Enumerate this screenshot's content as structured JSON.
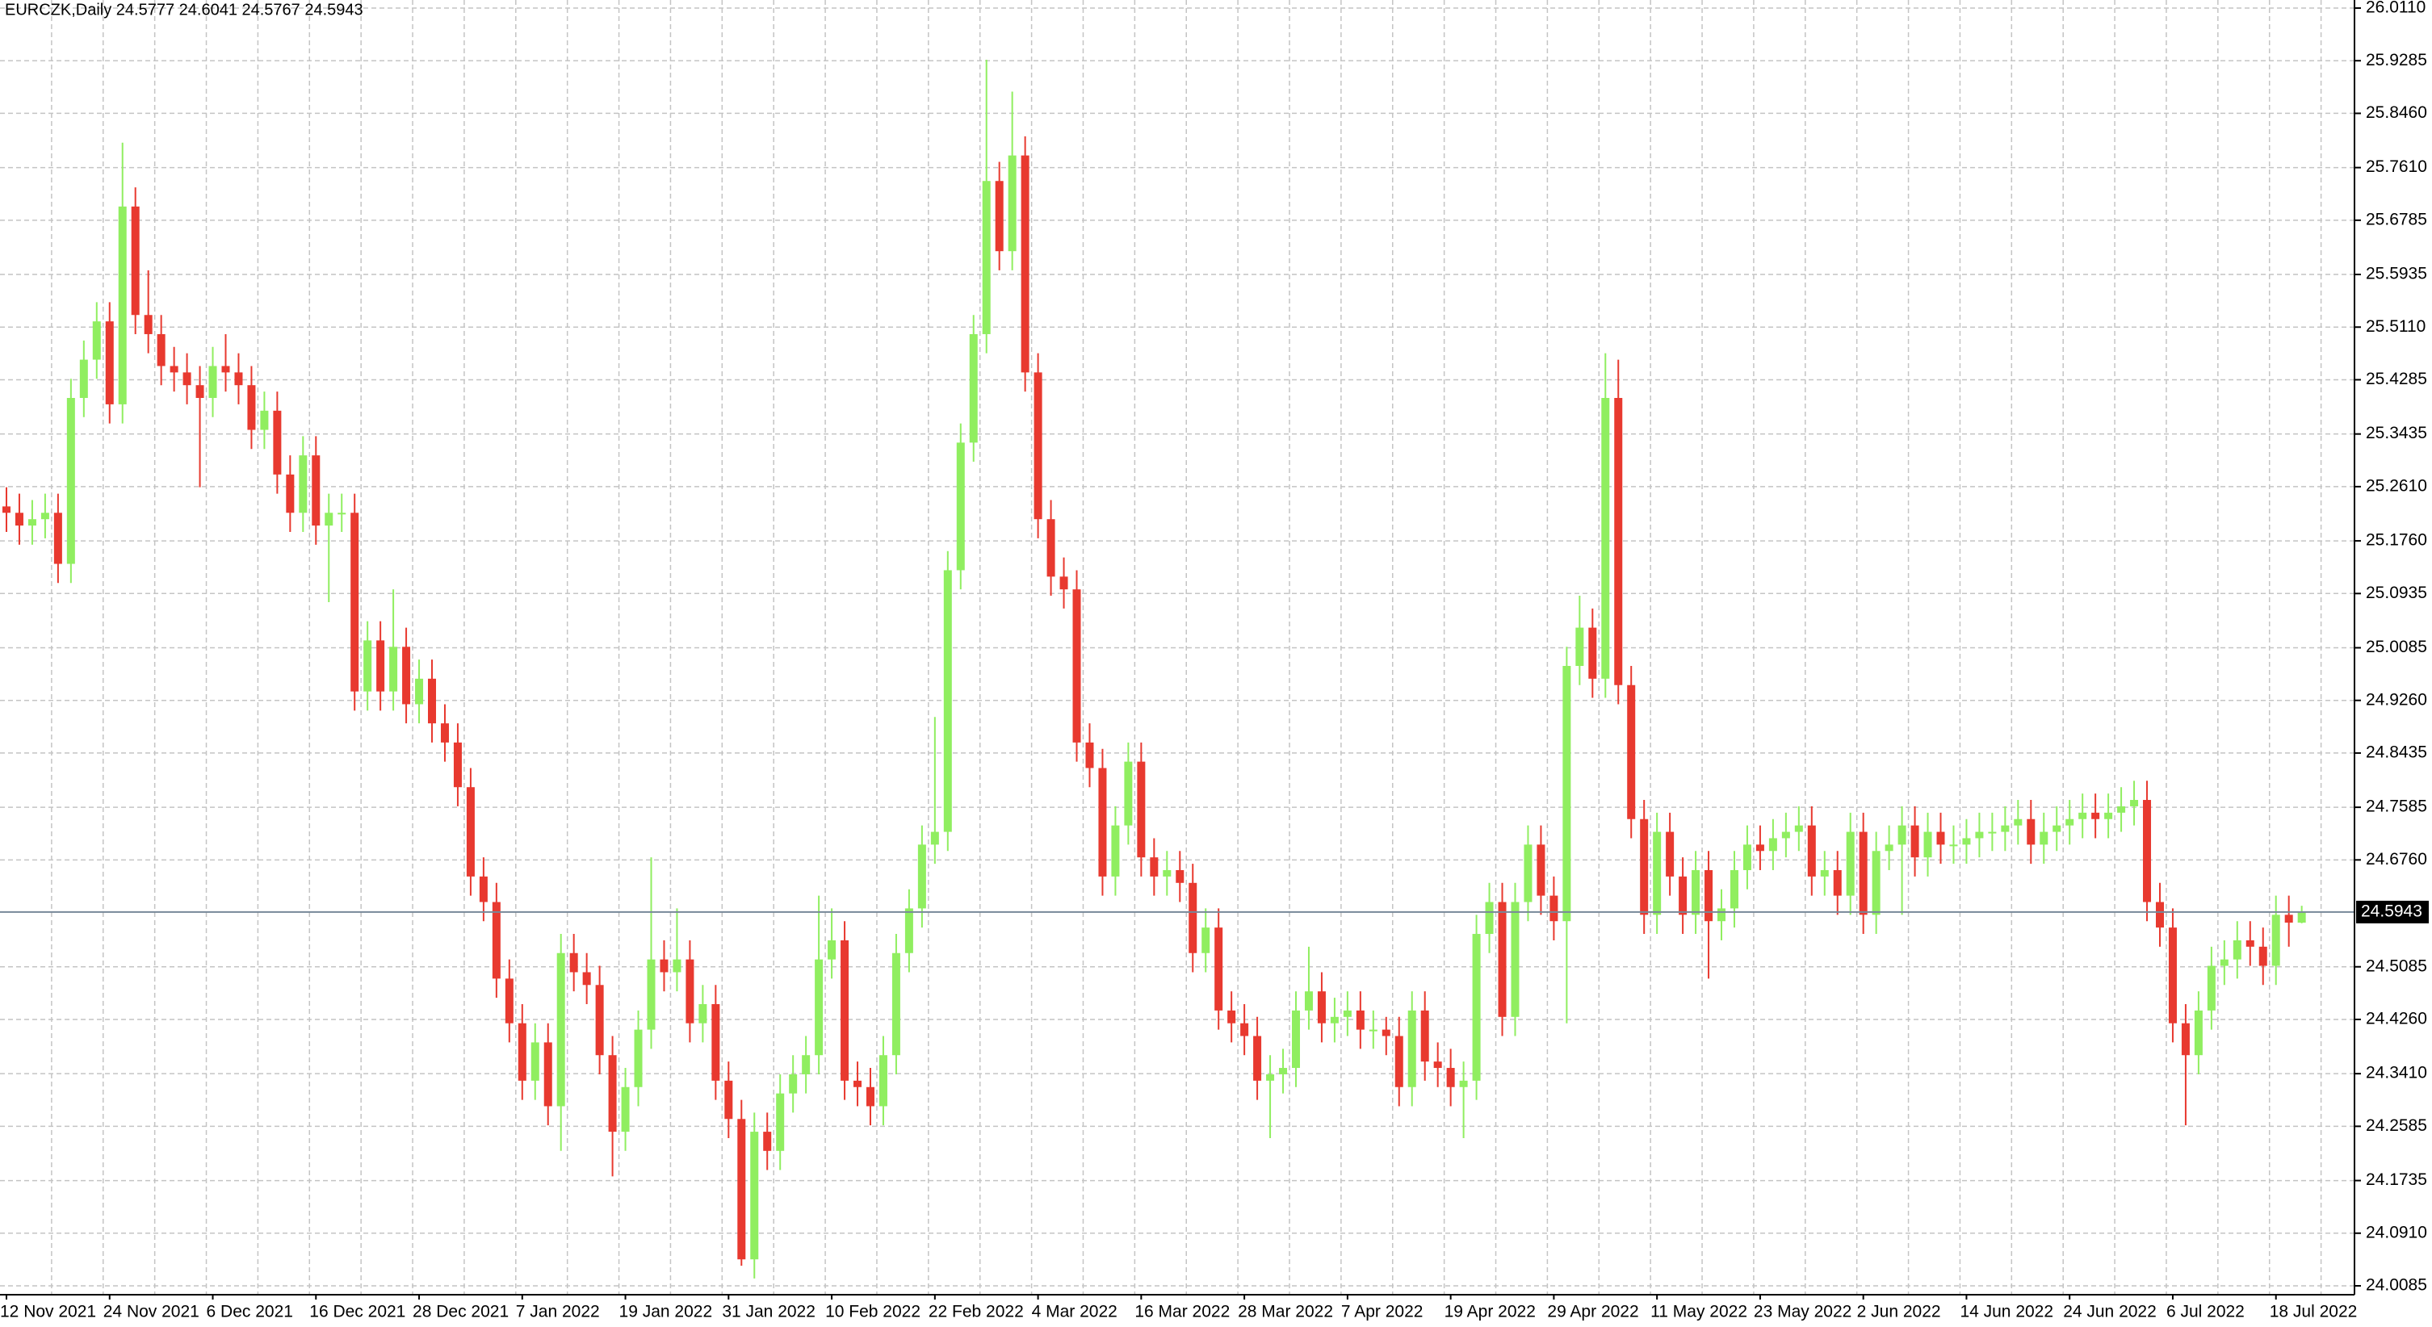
{
  "chart_data": {
    "type": "candlestick",
    "title": "EURCZK,Daily  24.5777 24.6041 24.5767 24.5943",
    "up_color": "#90ee60",
    "down_color": "#e8392f",
    "price_line_color": "#778899",
    "grid": true,
    "ylim": [
      24.0085,
      26.011
    ],
    "yticks": [
      {
        "value": 26.011,
        "label": "26.0110"
      },
      25.9285,
      {
        "value": 25.846,
        "label": "25.8460"
      },
      {
        "value": 25.761,
        "label": "25.7610"
      },
      25.6785,
      25.5935,
      {
        "value": 25.511,
        "label": "25.5110"
      },
      25.4285,
      25.3435,
      {
        "value": 25.261,
        "label": "25.2610"
      },
      {
        "value": 25.176,
        "label": "25.1760"
      },
      25.0935,
      25.0085,
      {
        "value": 24.926,
        "label": "24.9260"
      },
      24.8435,
      24.7585,
      {
        "value": 24.676,
        "label": "24.6760"
      },
      24.5085,
      {
        "value": 24.426,
        "label": "24.4260"
      },
      {
        "value": 24.341,
        "label": "24.3410"
      },
      24.2585,
      24.1735,
      {
        "value": 24.091,
        "label": "24.0910"
      },
      24.0085
    ],
    "categories": [
      "12 Nov 2021",
      null,
      null,
      null,
      null,
      null,
      null,
      null,
      "24 Nov 2021",
      null,
      null,
      null,
      null,
      null,
      null,
      null,
      "6 Dec 2021",
      null,
      null,
      null,
      null,
      null,
      null,
      null,
      "16 Dec 2021",
      null,
      null,
      null,
      null,
      null,
      null,
      null,
      "28 Dec 2021",
      null,
      null,
      null,
      null,
      null,
      null,
      null,
      "7 Jan 2022",
      null,
      null,
      null,
      null,
      null,
      null,
      null,
      "19 Jan 2022",
      null,
      null,
      null,
      null,
      null,
      null,
      null,
      "31 Jan 2022",
      null,
      null,
      null,
      null,
      null,
      null,
      null,
      "10 Feb 2022",
      null,
      null,
      null,
      null,
      null,
      null,
      null,
      "22 Feb 2022",
      null,
      null,
      null,
      null,
      null,
      null,
      null,
      "4 Mar 2022",
      null,
      null,
      null,
      null,
      null,
      null,
      null,
      "16 Mar 2022",
      null,
      null,
      null,
      null,
      null,
      null,
      null,
      "28 Mar 2022",
      null,
      null,
      null,
      null,
      null,
      null,
      null,
      "7 Apr 2022",
      null,
      null,
      null,
      null,
      null,
      null,
      null,
      "19 Apr 2022",
      null,
      null,
      null,
      null,
      null,
      null,
      null,
      "29 Apr 2022",
      null,
      null,
      null,
      null,
      null,
      null,
      null,
      "11 May 2022",
      null,
      null,
      null,
      null,
      null,
      null,
      null,
      "23 May 2022",
      null,
      null,
      null,
      null,
      null,
      null,
      null,
      "2 Jun 2022",
      null,
      null,
      null,
      null,
      null,
      null,
      null,
      "14 Jun 2022",
      null,
      null,
      null,
      null,
      null,
      null,
      null,
      "24 Jun 2022",
      null,
      null,
      null,
      null,
      null,
      null,
      null,
      "6 Jul 2022",
      null,
      null,
      null,
      null,
      null,
      null,
      null,
      "18 Jul 2022",
      null,
      null
    ],
    "open": [
      25.23,
      25.22,
      25.2,
      25.21,
      25.22,
      25.14,
      25.4,
      25.46,
      25.52,
      25.39,
      25.7,
      25.53,
      25.5,
      25.45,
      25.44,
      25.42,
      25.4,
      25.45,
      25.44,
      25.42,
      25.35,
      25.38,
      25.28,
      25.22,
      25.31,
      25.2,
      25.22,
      25.22,
      24.94,
      25.02,
      24.94,
      25.01,
      24.92,
      24.96,
      24.89,
      24.86,
      24.79,
      24.65,
      24.61,
      24.49,
      24.42,
      24.33,
      24.39,
      24.29,
      24.53,
      24.5,
      24.48,
      24.37,
      24.25,
      24.32,
      24.41,
      24.52,
      24.5,
      24.52,
      24.42,
      24.45,
      24.33,
      24.27,
      24.05,
      24.25,
      24.22,
      24.31,
      24.34,
      24.37,
      24.52,
      24.55,
      24.33,
      24.32,
      24.29,
      24.37,
      24.53,
      24.6,
      24.7,
      24.72,
      25.13,
      25.33,
      25.5,
      25.74,
      25.63,
      25.78,
      25.44,
      25.21,
      25.12,
      25.1,
      24.86,
      24.82,
      24.65,
      24.73,
      24.83,
      24.68,
      24.65,
      24.66,
      24.64,
      24.53,
      24.57,
      24.44,
      24.42,
      24.4,
      24.33,
      24.34,
      24.35,
      24.44,
      24.47,
      24.42,
      24.43,
      24.44,
      24.41,
      24.41,
      24.4,
      24.32,
      24.44,
      24.36,
      24.35,
      24.32,
      24.33,
      24.56,
      24.61,
      24.43,
      24.61,
      24.7,
      24.62,
      24.58,
      24.98,
      25.04,
      24.96,
      25.4,
      24.95,
      24.74,
      24.59,
      24.72,
      24.65,
      24.59,
      24.66,
      24.58,
      24.6,
      24.66,
      24.7,
      24.69,
      24.71,
      24.72,
      24.73,
      24.65,
      24.66,
      24.62,
      24.72,
      24.59,
      24.69,
      24.7,
      24.73,
      24.68,
      24.72,
      24.7,
      24.7,
      24.71,
      24.72,
      24.72,
      24.73,
      24.74,
      24.7,
      24.72,
      24.73,
      24.74,
      24.75,
      24.74,
      24.75,
      24.76,
      24.77,
      24.61,
      24.57,
      24.42,
      24.37,
      24.44,
      24.51,
      24.52,
      24.55,
      24.54,
      24.51,
      24.59,
      24.5777
    ],
    "high": [
      25.26,
      25.25,
      25.24,
      25.25,
      25.25,
      25.43,
      25.49,
      25.55,
      25.55,
      25.8,
      25.73,
      25.6,
      25.53,
      25.48,
      25.47,
      25.45,
      25.48,
      25.5,
      25.47,
      25.45,
      25.41,
      25.41,
      25.31,
      25.34,
      25.34,
      25.25,
      25.25,
      25.25,
      25.05,
      25.05,
      25.1,
      25.04,
      24.99,
      24.99,
      24.92,
      24.89,
      24.82,
      24.68,
      24.64,
      24.52,
      24.45,
      24.42,
      24.42,
      24.56,
      24.56,
      24.53,
      24.51,
      24.4,
      24.35,
      24.44,
      24.68,
      24.55,
      24.6,
      24.55,
      24.48,
      24.48,
      24.36,
      24.3,
      24.28,
      24.28,
      24.34,
      24.37,
      24.4,
      24.62,
      24.6,
      24.58,
      24.36,
      24.35,
      24.4,
      24.56,
      24.63,
      24.73,
      24.9,
      25.16,
      25.36,
      25.53,
      25.93,
      25.77,
      25.88,
      25.81,
      25.47,
      25.24,
      25.15,
      25.13,
      24.89,
      24.85,
      24.76,
      24.86,
      24.86,
      24.71,
      24.69,
      24.69,
      24.67,
      24.6,
      24.6,
      24.47,
      24.45,
      24.43,
      24.37,
      24.38,
      24.47,
      24.54,
      24.5,
      24.46,
      24.47,
      24.47,
      24.44,
      24.43,
      24.43,
      24.47,
      24.47,
      24.39,
      24.38,
      24.36,
      24.59,
      24.64,
      24.64,
      24.64,
      24.73,
      24.73,
      24.65,
      25.01,
      25.09,
      25.07,
      25.47,
      25.46,
      24.98,
      24.77,
      24.75,
      24.75,
      24.68,
      24.69,
      24.69,
      24.63,
      24.69,
      24.73,
      24.73,
      24.74,
      24.75,
      24.76,
      24.76,
      24.69,
      24.69,
      24.75,
      24.75,
      24.72,
      24.73,
      24.76,
      24.76,
      24.75,
      24.75,
      24.73,
      24.74,
      24.75,
      24.75,
      24.76,
      24.77,
      24.77,
      24.75,
      24.76,
      24.77,
      24.78,
      24.78,
      24.78,
      24.79,
      24.8,
      24.8,
      24.64,
      24.6,
      24.45,
      24.47,
      24.54,
      24.55,
      24.58,
      24.58,
      24.57,
      24.62,
      24.62,
      24.6041
    ],
    "low": [
      25.19,
      25.17,
      25.17,
      25.18,
      25.11,
      25.11,
      25.37,
      25.43,
      25.36,
      25.36,
      25.5,
      25.47,
      25.42,
      25.41,
      25.39,
      25.26,
      25.37,
      25.41,
      25.39,
      25.32,
      25.32,
      25.25,
      25.19,
      25.19,
      25.17,
      25.08,
      25.19,
      24.91,
      24.91,
      24.91,
      24.91,
      24.89,
      24.89,
      24.86,
      24.83,
      24.76,
      24.62,
      24.58,
      24.46,
      24.39,
      24.3,
      24.3,
      24.26,
      24.22,
      24.47,
      24.45,
      24.34,
      24.18,
      24.22,
      24.29,
      24.38,
      24.47,
      24.47,
      24.39,
      24.39,
      24.3,
      24.24,
      24.04,
      24.02,
      24.19,
      24.19,
      24.28,
      24.31,
      24.34,
      24.49,
      24.3,
      24.29,
      24.26,
      24.26,
      24.34,
      24.5,
      24.57,
      24.67,
      24.69,
      25.1,
      25.3,
      25.47,
      25.6,
      25.6,
      25.41,
      25.18,
      25.09,
      25.07,
      24.83,
      24.79,
      24.62,
      24.62,
      24.7,
      24.65,
      24.62,
      24.62,
      24.61,
      24.5,
      24.5,
      24.41,
      24.39,
      24.37,
      24.3,
      24.24,
      24.31,
      24.32,
      24.41,
      24.39,
      24.39,
      24.4,
      24.38,
      24.38,
      24.37,
      24.29,
      24.29,
      24.33,
      24.32,
      24.29,
      24.24,
      24.3,
      24.53,
      24.4,
      24.4,
      24.58,
      24.59,
      24.55,
      24.42,
      24.95,
      24.93,
      24.93,
      24.92,
      24.71,
      24.56,
      24.56,
      24.62,
      24.56,
      24.56,
      24.49,
      24.55,
      24.57,
      24.63,
      24.66,
      24.66,
      24.68,
      24.69,
      24.62,
      24.62,
      24.59,
      24.59,
      24.56,
      24.56,
      24.66,
      24.59,
      24.65,
      24.65,
      24.67,
      24.67,
      24.67,
      24.68,
      24.69,
      24.69,
      24.7,
      24.67,
      24.67,
      24.69,
      24.7,
      24.71,
      24.71,
      24.71,
      24.72,
      24.73,
      24.58,
      24.54,
      24.39,
      24.26,
      24.34,
      24.41,
      24.48,
      24.49,
      24.51,
      24.48,
      24.48,
      24.54,
      24.5767
    ],
    "close": [
      25.22,
      25.2,
      25.21,
      25.22,
      25.14,
      25.4,
      25.46,
      25.52,
      25.39,
      25.7,
      25.53,
      25.5,
      25.45,
      25.44,
      25.42,
      25.4,
      25.45,
      25.44,
      25.42,
      25.35,
      25.38,
      25.28,
      25.22,
      25.31,
      25.2,
      25.22,
      25.22,
      24.94,
      25.02,
      24.94,
      25.01,
      24.92,
      24.96,
      24.89,
      24.86,
      24.79,
      24.65,
      24.61,
      24.49,
      24.42,
      24.33,
      24.39,
      24.29,
      24.53,
      24.5,
      24.48,
      24.37,
      24.25,
      24.32,
      24.41,
      24.52,
      24.5,
      24.52,
      24.42,
      24.45,
      24.33,
      24.27,
      24.05,
      24.25,
      24.22,
      24.31,
      24.34,
      24.37,
      24.52,
      24.55,
      24.33,
      24.32,
      24.29,
      24.37,
      24.53,
      24.6,
      24.7,
      24.72,
      25.13,
      25.33,
      25.5,
      25.74,
      25.63,
      25.78,
      25.44,
      25.21,
      25.12,
      25.1,
      24.86,
      24.82,
      24.65,
      24.73,
      24.83,
      24.68,
      24.65,
      24.66,
      24.64,
      24.53,
      24.57,
      24.44,
      24.42,
      24.4,
      24.33,
      24.34,
      24.35,
      24.44,
      24.47,
      24.42,
      24.43,
      24.44,
      24.41,
      24.41,
      24.4,
      24.32,
      24.44,
      24.36,
      24.35,
      24.32,
      24.33,
      24.56,
      24.61,
      24.43,
      24.61,
      24.7,
      24.62,
      24.58,
      24.98,
      25.04,
      24.96,
      25.4,
      24.95,
      24.74,
      24.59,
      24.72,
      24.65,
      24.59,
      24.66,
      24.58,
      24.6,
      24.66,
      24.7,
      24.69,
      24.71,
      24.72,
      24.73,
      24.65,
      24.66,
      24.62,
      24.72,
      24.59,
      24.69,
      24.7,
      24.73,
      24.68,
      24.72,
      24.7,
      24.7,
      24.71,
      24.72,
      24.72,
      24.73,
      24.74,
      24.7,
      24.72,
      24.73,
      24.74,
      24.75,
      24.74,
      24.75,
      24.76,
      24.77,
      24.61,
      24.57,
      24.42,
      24.37,
      24.44,
      24.51,
      24.52,
      24.55,
      24.54,
      24.51,
      24.59,
      24.5777,
      24.5943
    ]
  }
}
